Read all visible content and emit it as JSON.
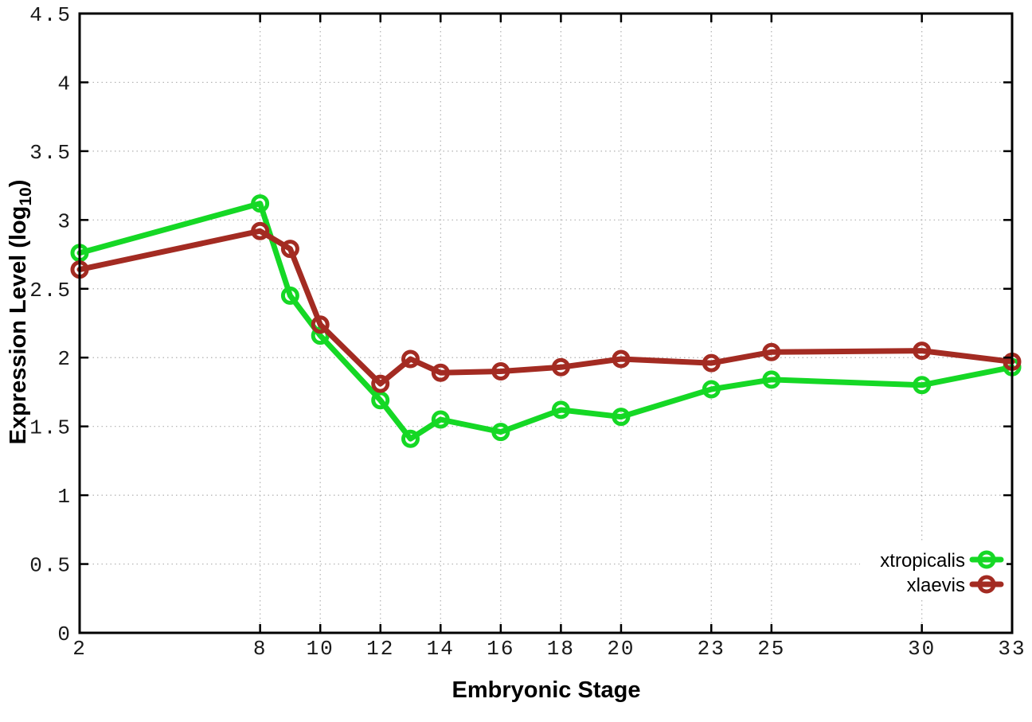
{
  "chart_data": {
    "type": "line",
    "title": "",
    "xlabel": "Embryonic Stage",
    "ylabel": {
      "main": "Expression Level (log",
      "sub": "10",
      "end": ")"
    },
    "x": [
      2,
      8,
      9,
      10,
      12,
      13,
      14,
      16,
      18,
      20,
      23,
      25,
      30,
      33
    ],
    "series": [
      {
        "name": "xtropicalis",
        "color": "#15d825",
        "marker": "open-circle",
        "values": [
          2.76,
          3.12,
          2.45,
          2.16,
          1.69,
          1.41,
          1.55,
          1.46,
          1.62,
          1.57,
          1.77,
          1.84,
          1.8,
          1.93
        ]
      },
      {
        "name": "xlaevis",
        "color": "#a32b22",
        "marker": "open-circle",
        "values": [
          2.64,
          2.92,
          2.79,
          2.24,
          1.81,
          1.99,
          1.89,
          1.9,
          1.93,
          1.99,
          1.96,
          2.04,
          2.05,
          1.97
        ]
      }
    ],
    "xlim": [
      2,
      33
    ],
    "ylim": [
      0,
      4.5
    ],
    "xticks": [
      2,
      8,
      10,
      12,
      14,
      16,
      18,
      20,
      23,
      25,
      30,
      33
    ],
    "yticks": [
      0,
      0.5,
      1,
      1.5,
      2,
      2.5,
      3,
      3.5,
      4,
      4.5
    ],
    "ytick_labels": [
      "0",
      "0.5",
      "1",
      "1.5",
      "2",
      "2.5",
      "3",
      "3.5",
      "4",
      "4.5"
    ],
    "grid": "dotted-both-axes",
    "legend": {
      "position": "bottom-right-inside",
      "opaque": true,
      "entries": [
        "xtropicalis",
        "xlaevis"
      ]
    },
    "colors": {
      "background": "#ffffff",
      "border": "#000000",
      "grid": "#b0b0b0"
    }
  }
}
